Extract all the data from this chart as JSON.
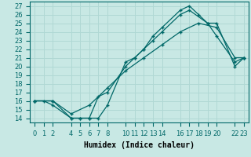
{
  "xlabel": "Humidex (Indice chaleur)",
  "xlim": [
    -0.5,
    23.5
  ],
  "ylim": [
    13.5,
    27.5
  ],
  "yticks": [
    14,
    15,
    16,
    17,
    18,
    19,
    20,
    21,
    22,
    23,
    24,
    25,
    26,
    27
  ],
  "xticks": [
    0,
    1,
    2,
    4,
    5,
    6,
    7,
    8,
    10,
    11,
    12,
    13,
    14,
    16,
    17,
    18,
    19,
    20,
    22,
    23
  ],
  "bg_color": "#c8e8e4",
  "grid_color": "#b0d8d4",
  "line_color": "#006868",
  "line1": {
    "x": [
      0,
      1,
      2,
      4,
      5,
      6,
      7,
      8,
      10,
      11,
      12,
      13,
      14,
      16,
      17,
      18,
      19,
      20,
      22,
      23
    ],
    "y": [
      16.0,
      16.0,
      15.5,
      14.0,
      14.0,
      14.0,
      14.0,
      15.5,
      20.5,
      21.0,
      22.0,
      23.5,
      24.5,
      26.5,
      27.0,
      26.0,
      25.0,
      25.0,
      20.0,
      21.0
    ]
  },
  "line2": {
    "x": [
      0,
      2,
      4,
      5,
      6,
      7,
      8,
      10,
      11,
      12,
      13,
      14,
      16,
      17,
      19,
      20,
      22,
      23
    ],
    "y": [
      16.0,
      16.0,
      14.0,
      14.0,
      14.0,
      16.5,
      17.0,
      20.0,
      21.0,
      22.0,
      23.0,
      24.0,
      26.0,
      26.5,
      25.0,
      23.5,
      20.5,
      21.0
    ]
  },
  "line3": {
    "x": [
      0,
      2,
      4,
      6,
      8,
      10,
      12,
      14,
      16,
      18,
      20,
      22,
      23
    ],
    "y": [
      16.0,
      16.0,
      14.5,
      15.5,
      17.5,
      19.5,
      21.0,
      22.5,
      24.0,
      25.0,
      24.5,
      21.0,
      21.0
    ]
  },
  "axis_fontsize": 7,
  "tick_fontsize": 6
}
